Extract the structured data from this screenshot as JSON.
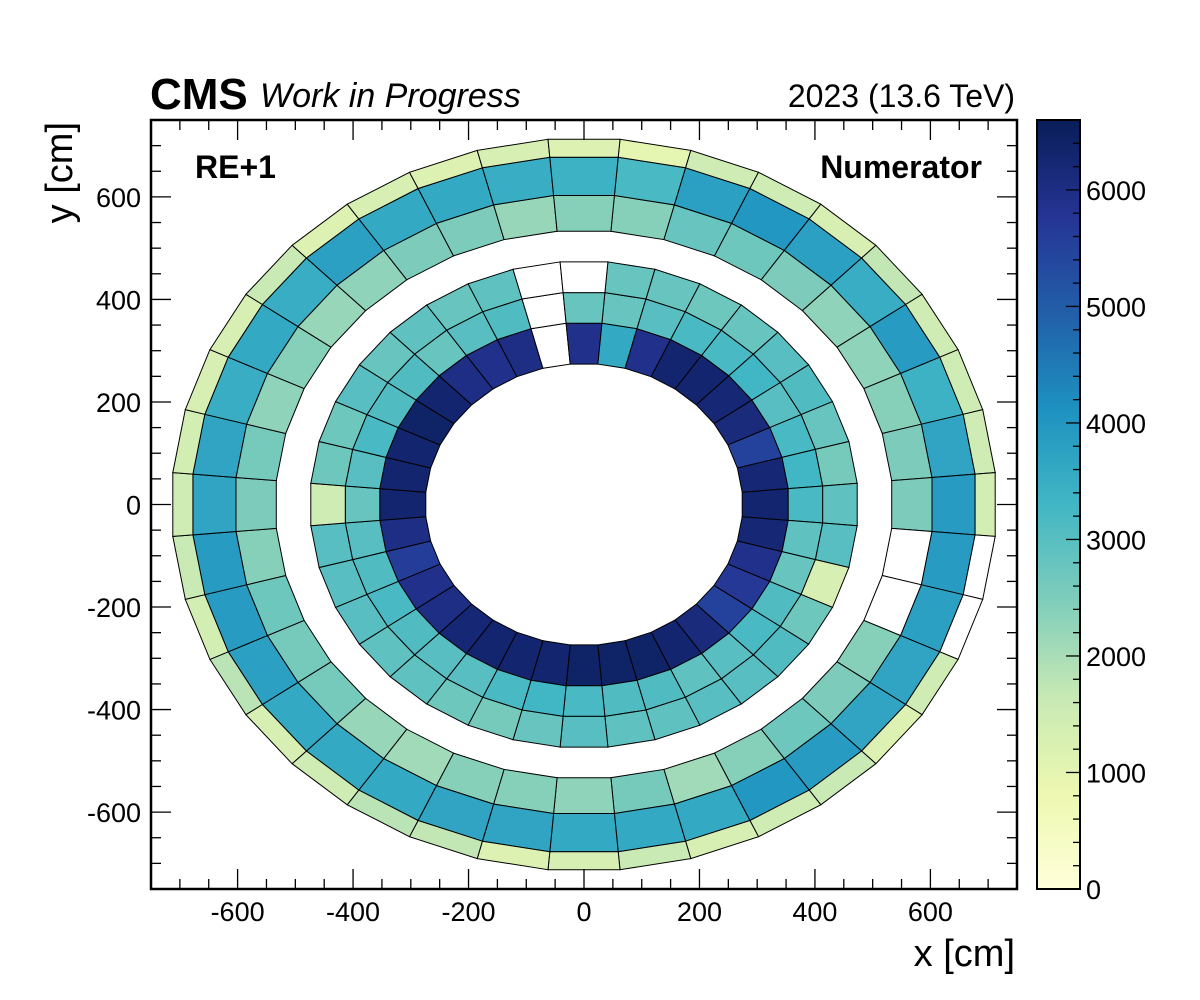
{
  "header": {
    "experiment": "CMS",
    "status": "Work in Progress",
    "lumi": "2023 (13.6 TeV)"
  },
  "chart_data": {
    "type": "heatmap",
    "station_label": "RE+1",
    "panel_label": "Numerator",
    "xlabel": "x [cm]",
    "ylabel": "y [cm]",
    "xlim": [
      -750,
      750
    ],
    "ylim": [
      -750,
      750
    ],
    "x_ticks": [
      "-600",
      "-400",
      "-200",
      "0",
      "200",
      "400",
      "600"
    ],
    "y_ticks": [
      "-600",
      "-400",
      "-200",
      "0",
      "200",
      "400",
      "600"
    ],
    "colorbar": {
      "min": 0,
      "max": 6600,
      "ticks": [
        "0",
        "1000",
        "2000",
        "3000",
        "4000",
        "5000",
        "6000"
      ]
    },
    "grid": false,
    "segments_per_ring": 36,
    "ring_radii_cm": [
      [
        275,
        355
      ],
      [
        355,
        415
      ],
      [
        415,
        475
      ],
      [
        535,
        605
      ],
      [
        605,
        680
      ],
      [
        680,
        715
      ]
    ],
    "rings": [
      {
        "name": "ring2-inner",
        "values": [
          3600,
          5900,
          6300,
          6300,
          6200,
          6100,
          5500,
          6200,
          6300,
          6200,
          5900,
          5700,
          5500,
          6100,
          6300,
          6400,
          6400,
          6400,
          6300,
          6300,
          6300,
          6200,
          6000,
          5900,
          5600,
          6000,
          6300,
          6300,
          6300,
          6400,
          6300,
          6000,
          5900,
          6000,
          null,
          5900
        ]
      },
      {
        "name": "ring2-middle",
        "values": [
          2800,
          3000,
          3200,
          3200,
          3300,
          3000,
          3200,
          3300,
          3200,
          2900,
          2800,
          3100,
          3200,
          3000,
          2900,
          3100,
          3100,
          3200,
          3300,
          3200,
          3000,
          3000,
          3100,
          3200,
          3100,
          3000,
          2800,
          3000,
          3200,
          3100,
          3100,
          2800,
          3000,
          3100,
          null,
          2800
        ]
      },
      {
        "name": "ring2-outer",
        "values": [
          2800,
          2800,
          2700,
          2800,
          3000,
          3100,
          2800,
          2600,
          2900,
          3000,
          1300,
          2700,
          3100,
          3000,
          3000,
          2900,
          2900,
          3000,
          2800,
          2600,
          2700,
          2900,
          2900,
          3000,
          3000,
          3000,
          1500,
          2700,
          2700,
          3000,
          2800,
          2900,
          2800,
          2900,
          null,
          null
        ]
      },
      {
        "name": "ring3-inner",
        "values": [
          2400,
          2800,
          2700,
          2500,
          2300,
          2300,
          2400,
          2500,
          2500,
          null,
          null,
          2400,
          2500,
          2700,
          2400,
          2100,
          2600,
          2300,
          2400,
          2400,
          2100,
          2200,
          2600,
          2600,
          2700,
          2400,
          2500,
          2600,
          2300,
          2400,
          2200,
          2300,
          2500,
          2500,
          2200,
          2400
        ]
      },
      {
        "name": "ring3-outer",
        "values": [
          3200,
          3800,
          4000,
          3800,
          3500,
          3900,
          3400,
          3700,
          3900,
          3900,
          3800,
          3700,
          3700,
          3900,
          4000,
          3600,
          3600,
          3600,
          3700,
          3700,
          3600,
          3600,
          3600,
          3800,
          3900,
          3900,
          3700,
          3700,
          3500,
          3600,
          3500,
          3800,
          3600,
          3600,
          3500,
          3400
        ]
      },
      {
        "name": "ring3-edge",
        "values": [
          1000,
          1500,
          1500,
          1300,
          1700,
          1500,
          1500,
          1500,
          1400,
          null,
          null,
          1500,
          1200,
          1600,
          1500,
          1300,
          1600,
          1300,
          1200,
          1700,
          1800,
          1500,
          1300,
          1800,
          1400,
          1600,
          1500,
          1400,
          1300,
          1300,
          1600,
          1200,
          1300,
          1200,
          1300,
          1200
        ]
      }
    ]
  }
}
